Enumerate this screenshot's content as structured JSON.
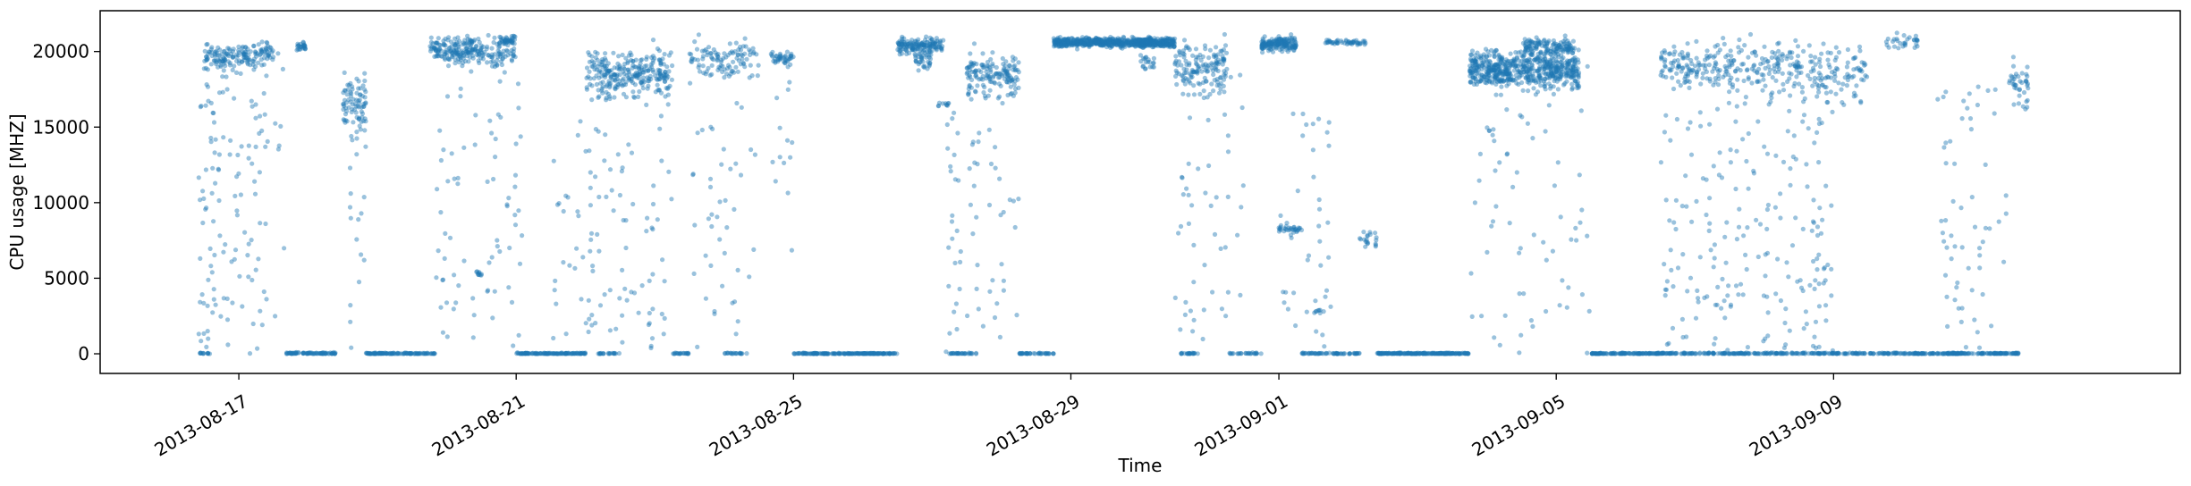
{
  "chart_data": {
    "type": "scatter",
    "title": "",
    "xlabel": "Time",
    "ylabel": "CPU usage [MHZ]",
    "x_type": "date",
    "xlim": [
      "2013-08-15T00:00",
      "2013-09-14T00:00"
    ],
    "ylim": [
      -1300,
      22700
    ],
    "y_ticks": [
      0,
      5000,
      10000,
      15000,
      20000
    ],
    "y_tick_labels": [
      "0",
      "5000",
      "10000",
      "15000",
      "20000"
    ],
    "x_ticks": [
      "2013-08-17",
      "2013-08-21",
      "2013-08-25",
      "2013-08-29",
      "2013-09-01",
      "2013-09-05",
      "2013-09-09"
    ],
    "x_tick_labels": [
      "2013-08-17",
      "2013-08-21",
      "2013-08-25",
      "2013-08-29",
      "2013-09-01",
      "2013-09-05",
      "2013-09-09"
    ],
    "series": [
      {
        "name": "CPU usage",
        "color": "#1f77b4",
        "marker_alpha": 0.45,
        "note": "Generated from segments: [start_date, end_date, mode, level_mhz, spread_mhz, n_points]. mode: 'idle' = near-zero baseline, 'busy' = clustered high usage, 'sparse' = values scattered across full range",
        "segments": [
          [
            "2013-08-16T10:00",
            "2013-08-16T14:00",
            "idle",
            0,
            60,
            12
          ],
          [
            "2013-08-16T10:00",
            "2013-08-16T16:00",
            "sparse",
            10000,
            10000,
            40
          ],
          [
            "2013-08-16T12:00",
            "2013-08-17T02:00",
            "busy",
            19500,
            900,
            90
          ],
          [
            "2013-08-16T14:00",
            "2013-08-17T06:00",
            "sparse",
            10000,
            10000,
            60
          ],
          [
            "2013-08-17T00:00",
            "2013-08-17T12:00",
            "busy",
            19800,
            700,
            70
          ],
          [
            "2013-08-17T04:00",
            "2013-08-17T16:00",
            "sparse",
            10000,
            10000,
            30
          ],
          [
            "2013-08-17T16:00",
            "2013-08-18T10:00",
            "idle",
            0,
            80,
            80
          ],
          [
            "2013-08-17T20:00",
            "2013-08-17T23:00",
            "busy",
            20300,
            300,
            25
          ],
          [
            "2013-08-18T12:00",
            "2013-08-18T20:00",
            "busy",
            16500,
            2000,
            80
          ],
          [
            "2013-08-18T14:00",
            "2013-08-18T20:00",
            "sparse",
            8000,
            8000,
            20
          ],
          [
            "2013-08-18T20:00",
            "2013-08-19T20:00",
            "idle",
            0,
            50,
            110
          ],
          [
            "2013-08-19T18:00",
            "2013-08-20T12:00",
            "busy",
            20100,
            800,
            170
          ],
          [
            "2013-08-19T20:00",
            "2013-08-20T10:00",
            "sparse",
            11000,
            10000,
            40
          ],
          [
            "2013-08-20T10:00",
            "2013-08-20T12:00",
            "busy",
            5300,
            200,
            10
          ],
          [
            "2013-08-20T12:00",
            "2013-08-21T00:00",
            "busy",
            19800,
            900,
            60
          ],
          [
            "2013-08-20T14:00",
            "2013-08-21T02:00",
            "sparse",
            10000,
            10000,
            40
          ],
          [
            "2013-08-20T18:00",
            "2013-08-21T00:00",
            "busy",
            20700,
            300,
            40
          ],
          [
            "2013-08-21T00:00",
            "2013-08-22T00:00",
            "idle",
            0,
            50,
            120
          ],
          [
            "2013-08-21T12:00",
            "2013-08-22T06:00",
            "sparse",
            8000,
            8000,
            30
          ],
          [
            "2013-08-22T00:00",
            "2013-08-23T06:00",
            "busy",
            18500,
            1500,
            260
          ],
          [
            "2013-08-22T00:00",
            "2013-08-23T06:00",
            "sparse",
            10000,
            10000,
            90
          ],
          [
            "2013-08-22T04:00",
            "2013-08-22T12:00",
            "idle",
            0,
            60,
            20
          ],
          [
            "2013-08-23T06:00",
            "2013-08-23T12:00",
            "idle",
            0,
            60,
            20
          ],
          [
            "2013-08-23T12:00",
            "2013-08-24T12:00",
            "busy",
            19500,
            1200,
            100
          ],
          [
            "2013-08-23T12:00",
            "2013-08-24T12:00",
            "sparse",
            10000,
            10000,
            50
          ],
          [
            "2013-08-24T00:00",
            "2013-08-24T08:00",
            "idle",
            0,
            60,
            20
          ],
          [
            "2013-08-24T16:00",
            "2013-08-25T00:00",
            "busy",
            19600,
            500,
            40
          ],
          [
            "2013-08-24T16:00",
            "2013-08-25T00:00",
            "sparse",
            10000,
            10000,
            15
          ],
          [
            "2013-08-25T00:00",
            "2013-08-26T12:00",
            "idle",
            0,
            40,
            180
          ],
          [
            "2013-08-26T12:00",
            "2013-08-27T04:00",
            "busy",
            20400,
            500,
            140
          ],
          [
            "2013-08-26T18:00",
            "2013-08-27T00:00",
            "busy",
            19600,
            700,
            40
          ],
          [
            "2013-08-27T02:00",
            "2013-08-27T06:00",
            "busy",
            16500,
            100,
            10
          ],
          [
            "2013-08-27T04:00",
            "2013-08-27T10:00",
            "sparse",
            8000,
            8000,
            25
          ],
          [
            "2013-08-27T06:00",
            "2013-08-27T16:00",
            "idle",
            0,
            50,
            30
          ],
          [
            "2013-08-27T12:00",
            "2013-08-28T06:00",
            "busy",
            18500,
            1500,
            150
          ],
          [
            "2013-08-27T12:00",
            "2013-08-28T06:00",
            "sparse",
            9000,
            9000,
            40
          ],
          [
            "2013-08-28T06:00",
            "2013-08-28T18:00",
            "idle",
            0,
            50,
            40
          ],
          [
            "2013-08-28T18:00",
            "2013-08-30T12:00",
            "busy",
            20600,
            300,
            700
          ],
          [
            "2013-08-30T00:00",
            "2013-08-30T06:00",
            "busy",
            19300,
            500,
            20
          ],
          [
            "2013-08-30T12:00",
            "2013-08-31T06:00",
            "busy",
            19000,
            1500,
            140
          ],
          [
            "2013-08-30T12:00",
            "2013-08-31T12:00",
            "sparse",
            10000,
            10000,
            60
          ],
          [
            "2013-08-30T14:00",
            "2013-08-30T20:00",
            "idle",
            0,
            50,
            20
          ],
          [
            "2013-08-31T06:00",
            "2013-08-31T18:00",
            "idle",
            0,
            60,
            25
          ],
          [
            "2013-08-31T18:00",
            "2013-09-01T06:00",
            "busy",
            20500,
            500,
            170
          ],
          [
            "2013-09-01T00:00",
            "2013-09-01T08:00",
            "busy",
            8200,
            250,
            30
          ],
          [
            "2013-09-01T00:00",
            "2013-09-01T18:00",
            "sparse",
            8000,
            8000,
            40
          ],
          [
            "2013-09-01T08:00",
            "2013-09-02T04:00",
            "idle",
            0,
            50,
            60
          ],
          [
            "2013-09-01T12:00",
            "2013-09-01T16:00",
            "busy",
            2800,
            100,
            8
          ],
          [
            "2013-09-01T16:00",
            "2013-09-02T06:00",
            "busy",
            20600,
            150,
            50
          ],
          [
            "2013-09-02T04:00",
            "2013-09-02T10:00",
            "busy",
            7500,
            500,
            20
          ],
          [
            "2013-09-02T10:00",
            "2013-09-03T18:00",
            "idle",
            0,
            50,
            200
          ],
          [
            "2013-09-03T18:00",
            "2013-09-05T08:00",
            "busy",
            18800,
            1200,
            600
          ],
          [
            "2013-09-03T18:00",
            "2013-09-05T12:00",
            "sparse",
            10000,
            10000,
            80
          ],
          [
            "2013-09-04T12:00",
            "2013-09-05T06:00",
            "busy",
            20300,
            600,
            120
          ],
          [
            "2013-09-05T12:00",
            "2013-09-06T12:00",
            "idle",
            0,
            50,
            120
          ],
          [
            "2013-09-06T12:00",
            "2013-09-08T12:00",
            "busy",
            19000,
            1500,
            230
          ],
          [
            "2013-09-06T12:00",
            "2013-09-09T00:00",
            "sparse",
            10000,
            10000,
            240
          ],
          [
            "2013-09-06T12:00",
            "2013-09-10T00:00",
            "idle",
            0,
            60,
            260
          ],
          [
            "2013-09-08T12:00",
            "2013-09-09T12:00",
            "busy",
            18500,
            2000,
            100
          ],
          [
            "2013-09-09T18:00",
            "2013-09-10T06:00",
            "busy",
            20600,
            500,
            30
          ],
          [
            "2013-09-10T00:00",
            "2013-09-11T16:00",
            "idle",
            0,
            50,
            180
          ],
          [
            "2013-09-10T12:00",
            "2013-09-11T12:00",
            "sparse",
            9000,
            9000,
            60
          ],
          [
            "2013-09-11T12:00",
            "2013-09-11T20:00",
            "busy",
            18000,
            1500,
            40
          ]
        ]
      }
    ]
  }
}
